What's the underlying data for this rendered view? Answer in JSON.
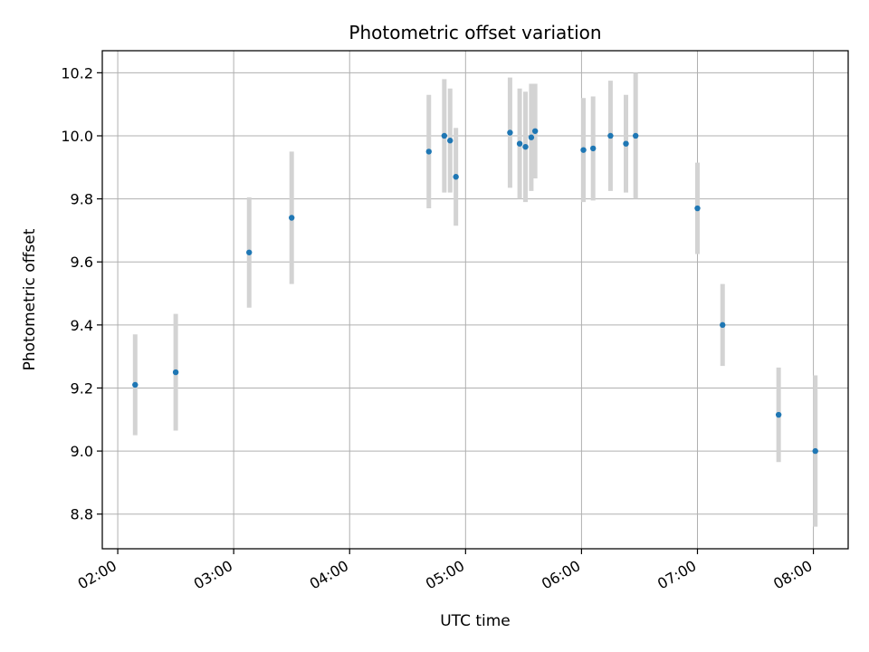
{
  "chart_data": {
    "type": "scatter",
    "title": "Photometric offset variation",
    "xlabel": "UTC time",
    "ylabel": "Photometric offset",
    "x_ticks": [
      "02:00",
      "03:00",
      "04:00",
      "05:00",
      "06:00",
      "07:00",
      "08:00"
    ],
    "y_ticks": [
      "8.8",
      "9.0",
      "9.2",
      "9.4",
      "9.6",
      "9.8",
      "10.0",
      "10.2"
    ],
    "xlim": [
      "01:52",
      "08:18"
    ],
    "ylim": [
      8.69,
      10.27
    ],
    "grid": true,
    "colors": {
      "point": "#1f77b4",
      "errorbar": "#d3d3d3",
      "grid": "#b0b0b0"
    },
    "series": [
      {
        "points": [
          {
            "x": "02:09",
            "y": 9.21,
            "yerr": 0.16
          },
          {
            "x": "02:30",
            "y": 9.25,
            "yerr": 0.185
          },
          {
            "x": "03:08",
            "y": 9.63,
            "yerr": 0.175
          },
          {
            "x": "03:30",
            "y": 9.74,
            "yerr": 0.21
          },
          {
            "x": "04:41",
            "y": 9.95,
            "yerr": 0.18
          },
          {
            "x": "04:49",
            "y": 10.0,
            "yerr": 0.18
          },
          {
            "x": "04:52",
            "y": 9.985,
            "yerr": 0.165
          },
          {
            "x": "04:55",
            "y": 9.87,
            "yerr": 0.155
          },
          {
            "x": "05:23",
            "y": 10.01,
            "yerr": 0.175
          },
          {
            "x": "05:28",
            "y": 9.975,
            "yerr": 0.175
          },
          {
            "x": "05:31",
            "y": 9.965,
            "yerr": 0.175
          },
          {
            "x": "05:34",
            "y": 9.995,
            "yerr": 0.17
          },
          {
            "x": "05:36",
            "y": 10.015,
            "yerr": 0.15
          },
          {
            "x": "06:01",
            "y": 9.955,
            "yerr": 0.165
          },
          {
            "x": "06:06",
            "y": 9.96,
            "yerr": 0.165
          },
          {
            "x": "06:15",
            "y": 10.0,
            "yerr": 0.175
          },
          {
            "x": "06:23",
            "y": 9.975,
            "yerr": 0.155
          },
          {
            "x": "06:28",
            "y": 10.0,
            "yerr": 0.2
          },
          {
            "x": "07:00",
            "y": 9.77,
            "yerr": 0.145
          },
          {
            "x": "07:13",
            "y": 9.4,
            "yerr": 0.13
          },
          {
            "x": "07:42",
            "y": 9.115,
            "yerr": 0.15
          },
          {
            "x": "08:01",
            "y": 9.0,
            "yerr": 0.24
          }
        ]
      }
    ]
  }
}
